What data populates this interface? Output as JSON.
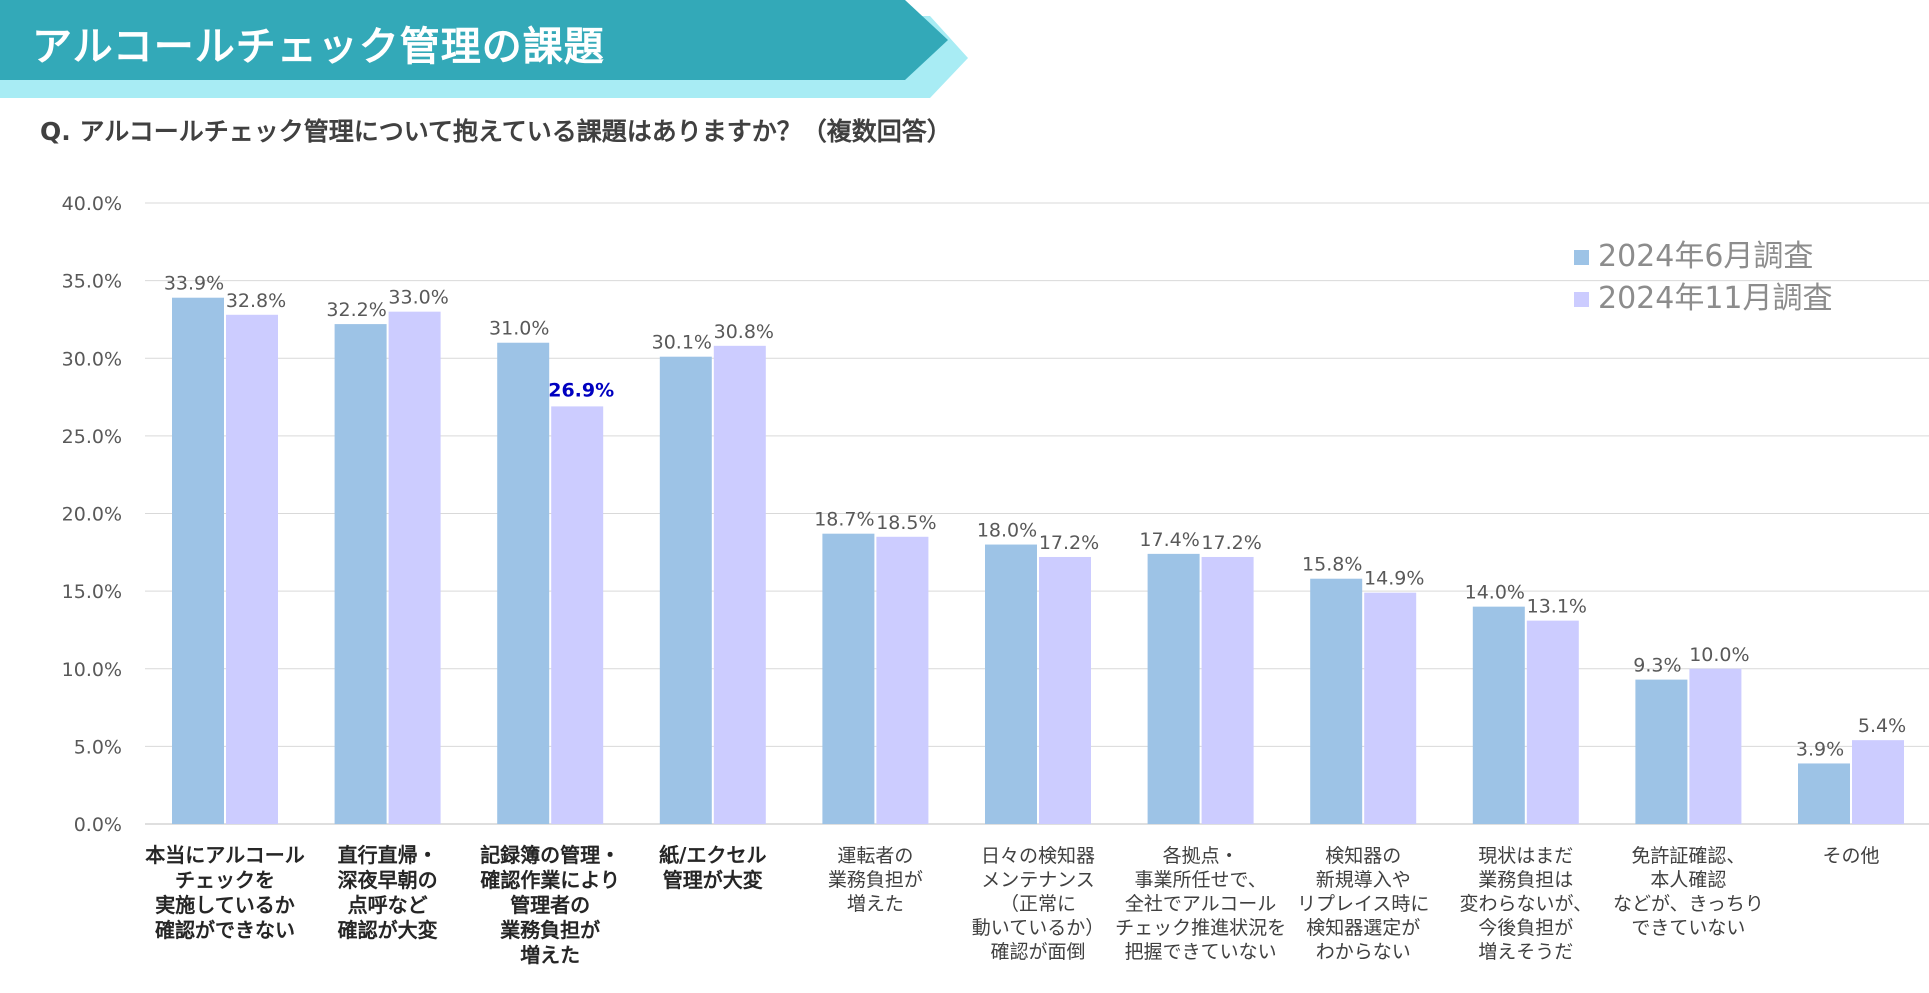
{
  "banner": {
    "title": "アルコールチェック管理の課題",
    "color": "#33a9b8",
    "accent": "#a8ecf4"
  },
  "question": "Q. アルコールチェック管理について抱えている課題はありますか？（複数回答）",
  "chart_data": {
    "type": "bar",
    "ylim": [
      0,
      40
    ],
    "yticks": [
      "0.0%",
      "5.0%",
      "10.0%",
      "15.0%",
      "20.0%",
      "25.0%",
      "30.0%",
      "35.0%",
      "40.0%"
    ],
    "grid": true,
    "legend_position": "top-right",
    "categories": [
      {
        "lines": [
          "本当にアルコール",
          "チェックを",
          "実施しているか",
          "確認ができない"
        ],
        "bold": true
      },
      {
        "lines": [
          "直行直帰・",
          "深夜早朝の",
          "点呼など",
          "確認が大変"
        ],
        "bold": true
      },
      {
        "lines": [
          "記録簿の管理・",
          "確認作業により",
          "管理者の",
          "業務負担が",
          "増えた"
        ],
        "bold": true
      },
      {
        "lines": [
          "紙/エクセル",
          "管理が大変"
        ],
        "bold": true
      },
      {
        "lines": [
          "運転者の",
          "業務負担が",
          "増えた"
        ],
        "bold": false
      },
      {
        "lines": [
          "日々の検知器",
          "メンテナンス",
          "（正常に",
          "動いているか）",
          "確認が面倒"
        ],
        "bold": false
      },
      {
        "lines": [
          "各拠点・",
          "事業所任せで、",
          "全社でアルコール",
          "チェック推進状況を",
          "把握できていない"
        ],
        "bold": false
      },
      {
        "lines": [
          "検知器の",
          "新規導入や",
          "リプレイス時に",
          "検知器選定が",
          "わからない"
        ],
        "bold": false
      },
      {
        "lines": [
          "現状はまだ",
          "業務負担は",
          "変わらないが、",
          "今後負担が",
          "増えそうだ"
        ],
        "bold": false
      },
      {
        "lines": [
          "免許証確認、",
          "本人確認",
          "などが、きっちり",
          "できていない"
        ],
        "bold": false
      },
      {
        "lines": [
          "その他"
        ],
        "bold": false
      }
    ],
    "series": [
      {
        "name": "2024年6月調査",
        "color": "#9dc3e6",
        "values": [
          33.9,
          32.2,
          31.0,
          30.1,
          18.7,
          18.0,
          17.4,
          15.8,
          14.0,
          9.3,
          3.9
        ],
        "labels": [
          "33.9%",
          "32.2%",
          "31.0%",
          "30.1%",
          "18.7%",
          "18.0%",
          "17.4%",
          "15.8%",
          "14.0%",
          "9.3%",
          "3.9%"
        ]
      },
      {
        "name": "2024年11月調査",
        "color": "#ccccff",
        "values": [
          32.8,
          33.0,
          26.9,
          30.8,
          18.5,
          17.2,
          17.2,
          14.9,
          13.1,
          10.0,
          5.4
        ],
        "labels": [
          "32.8%",
          "33.0%",
          "26.9%",
          "30.8%",
          "18.5%",
          "17.2%",
          "17.2%",
          "14.9%",
          "13.1%",
          "10.0%",
          "5.4%"
        ]
      }
    ],
    "highlight": {
      "series": 1,
      "index": 2,
      "color": "#0000c0"
    }
  }
}
